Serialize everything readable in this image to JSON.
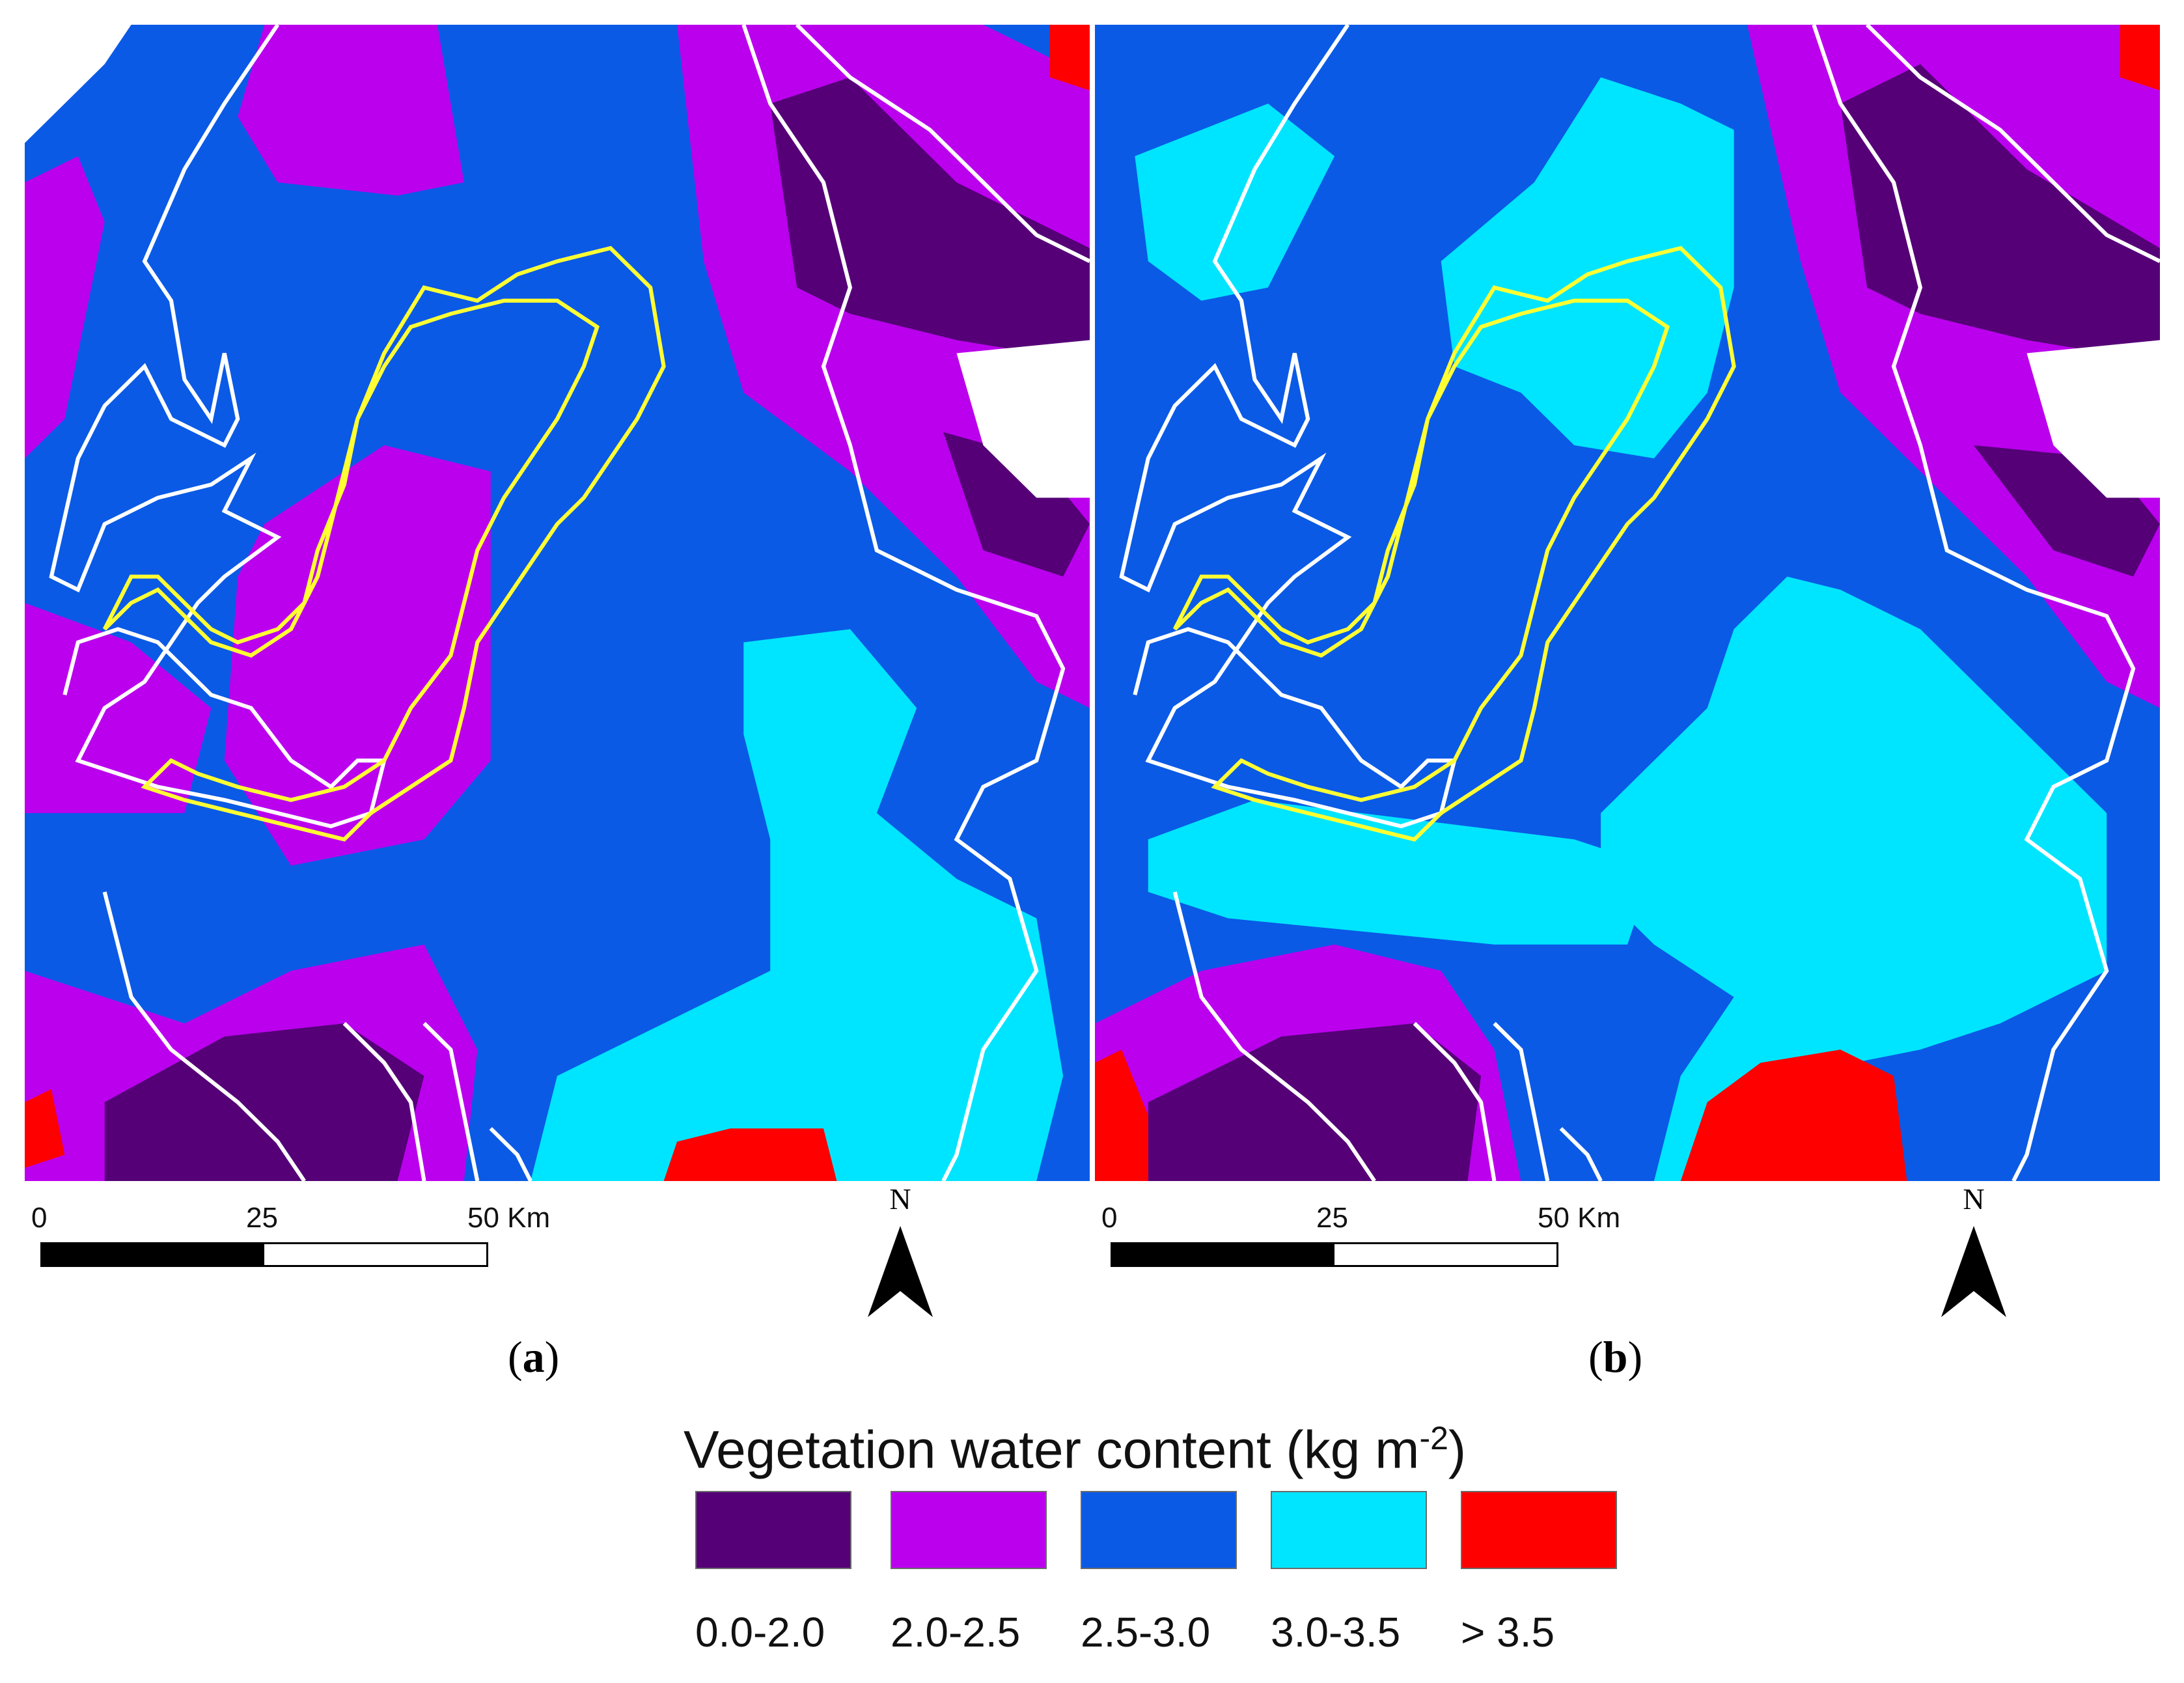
{
  "panels": [
    {
      "id": "a",
      "label": "a"
    },
    {
      "id": "b",
      "label": "b"
    }
  ],
  "scalebar": {
    "ticks": [
      "0",
      "25",
      "50 Km"
    ]
  },
  "north_label": "N",
  "legend": {
    "title": "Vegetation water content (kg m",
    "title_sup": "-2",
    "title_close": ")",
    "items": [
      {
        "label": "0.0-2.0",
        "color": "#550077"
      },
      {
        "label": "2.0-2.5",
        "color": "#bb00ee"
      },
      {
        "label": "2.5-3.0",
        "color": "#0a5ae6"
      },
      {
        "label": "3.0-3.5",
        "color": "#00e5ff"
      },
      {
        "label": "> 3.5",
        "color": "#ff0000"
      }
    ]
  },
  "colors": {
    "outline": "#ffffff",
    "study_area": "#ffff33",
    "background": "#ffffff"
  }
}
